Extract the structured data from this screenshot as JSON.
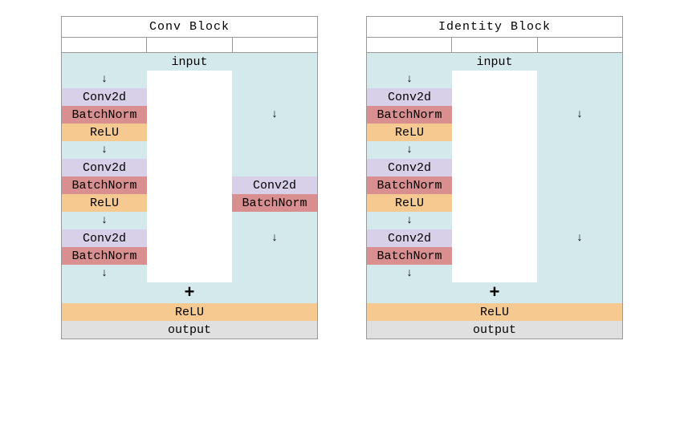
{
  "colors": {
    "input_bg": "#d4e9ec",
    "output_bg": "#e0e0e0",
    "conv_bg": "#d8cfe8",
    "bn_bg": "#d98f8f",
    "relu_bg": "#f5c98f",
    "white": "#ffffff",
    "plus_bg": "#d4e9ec"
  },
  "labels": {
    "input": "input",
    "output": "output",
    "conv": "Conv2d",
    "bn": "BatchNorm",
    "relu": "ReLU",
    "arrow": "↓",
    "plus": "+"
  },
  "blocks": [
    {
      "title": "Conv Block",
      "rows": [
        {
          "type": "full",
          "cls": "input",
          "key": "input"
        },
        {
          "type": "3col",
          "l": {
            "cls": "input",
            "key": "arrow",
            "arrow": true
          },
          "m": {
            "cls": "white"
          },
          "r": {
            "cls": "input"
          }
        },
        {
          "type": "3col",
          "l": {
            "cls": "conv",
            "key": "conv"
          },
          "m": {
            "cls": "white"
          },
          "r": {
            "cls": "input"
          }
        },
        {
          "type": "3col",
          "l": {
            "cls": "bn",
            "key": "bn"
          },
          "m": {
            "cls": "white"
          },
          "r": {
            "cls": "input",
            "key": "arrow",
            "arrow": true
          }
        },
        {
          "type": "3col",
          "l": {
            "cls": "relu",
            "key": "relu"
          },
          "m": {
            "cls": "white"
          },
          "r": {
            "cls": "input"
          }
        },
        {
          "type": "3col",
          "l": {
            "cls": "input",
            "key": "arrow",
            "arrow": true
          },
          "m": {
            "cls": "white"
          },
          "r": {
            "cls": "input"
          }
        },
        {
          "type": "3col",
          "l": {
            "cls": "conv",
            "key": "conv"
          },
          "m": {
            "cls": "white"
          },
          "r": {
            "cls": "input"
          }
        },
        {
          "type": "3col",
          "l": {
            "cls": "bn",
            "key": "bn"
          },
          "m": {
            "cls": "white"
          },
          "r": {
            "cls": "conv",
            "key": "conv"
          }
        },
        {
          "type": "3col",
          "l": {
            "cls": "relu",
            "key": "relu"
          },
          "m": {
            "cls": "white"
          },
          "r": {
            "cls": "bn",
            "key": "bn"
          }
        },
        {
          "type": "3col",
          "l": {
            "cls": "input",
            "key": "arrow",
            "arrow": true
          },
          "m": {
            "cls": "white"
          },
          "r": {
            "cls": "input"
          }
        },
        {
          "type": "3col",
          "l": {
            "cls": "conv",
            "key": "conv"
          },
          "m": {
            "cls": "white"
          },
          "r": {
            "cls": "input",
            "key": "arrow",
            "arrow": true
          }
        },
        {
          "type": "3col",
          "l": {
            "cls": "bn",
            "key": "bn"
          },
          "m": {
            "cls": "white"
          },
          "r": {
            "cls": "input"
          }
        },
        {
          "type": "3col",
          "l": {
            "cls": "input",
            "key": "arrow",
            "arrow": true
          },
          "m": {
            "cls": "white"
          },
          "r": {
            "cls": "input"
          }
        },
        {
          "type": "full",
          "cls": "plus",
          "key": "plus",
          "plus": true
        },
        {
          "type": "full",
          "cls": "relu",
          "key": "relu"
        },
        {
          "type": "full",
          "cls": "output",
          "key": "output"
        }
      ]
    },
    {
      "title": "Identity Block",
      "rows": [
        {
          "type": "full",
          "cls": "input",
          "key": "input"
        },
        {
          "type": "3col",
          "l": {
            "cls": "input",
            "key": "arrow",
            "arrow": true
          },
          "m": {
            "cls": "white"
          },
          "r": {
            "cls": "input"
          }
        },
        {
          "type": "3col",
          "l": {
            "cls": "conv",
            "key": "conv"
          },
          "m": {
            "cls": "white"
          },
          "r": {
            "cls": "input"
          }
        },
        {
          "type": "3col",
          "l": {
            "cls": "bn",
            "key": "bn"
          },
          "m": {
            "cls": "white"
          },
          "r": {
            "cls": "input",
            "key": "arrow",
            "arrow": true
          }
        },
        {
          "type": "3col",
          "l": {
            "cls": "relu",
            "key": "relu"
          },
          "m": {
            "cls": "white"
          },
          "r": {
            "cls": "input"
          }
        },
        {
          "type": "3col",
          "l": {
            "cls": "input",
            "key": "arrow",
            "arrow": true
          },
          "m": {
            "cls": "white"
          },
          "r": {
            "cls": "input"
          }
        },
        {
          "type": "3col",
          "l": {
            "cls": "conv",
            "key": "conv"
          },
          "m": {
            "cls": "white"
          },
          "r": {
            "cls": "input"
          }
        },
        {
          "type": "3col",
          "l": {
            "cls": "bn",
            "key": "bn"
          },
          "m": {
            "cls": "white"
          },
          "r": {
            "cls": "input"
          }
        },
        {
          "type": "3col",
          "l": {
            "cls": "relu",
            "key": "relu"
          },
          "m": {
            "cls": "white"
          },
          "r": {
            "cls": "input"
          }
        },
        {
          "type": "3col",
          "l": {
            "cls": "input",
            "key": "arrow",
            "arrow": true
          },
          "m": {
            "cls": "white"
          },
          "r": {
            "cls": "input"
          }
        },
        {
          "type": "3col",
          "l": {
            "cls": "conv",
            "key": "conv"
          },
          "m": {
            "cls": "white"
          },
          "r": {
            "cls": "input",
            "key": "arrow",
            "arrow": true
          }
        },
        {
          "type": "3col",
          "l": {
            "cls": "bn",
            "key": "bn"
          },
          "m": {
            "cls": "white"
          },
          "r": {
            "cls": "input"
          }
        },
        {
          "type": "3col",
          "l": {
            "cls": "input",
            "key": "arrow",
            "arrow": true
          },
          "m": {
            "cls": "white"
          },
          "r": {
            "cls": "input"
          }
        },
        {
          "type": "full",
          "cls": "plus",
          "key": "plus",
          "plus": true
        },
        {
          "type": "full",
          "cls": "relu",
          "key": "relu"
        },
        {
          "type": "full",
          "cls": "output",
          "key": "output"
        }
      ]
    }
  ]
}
